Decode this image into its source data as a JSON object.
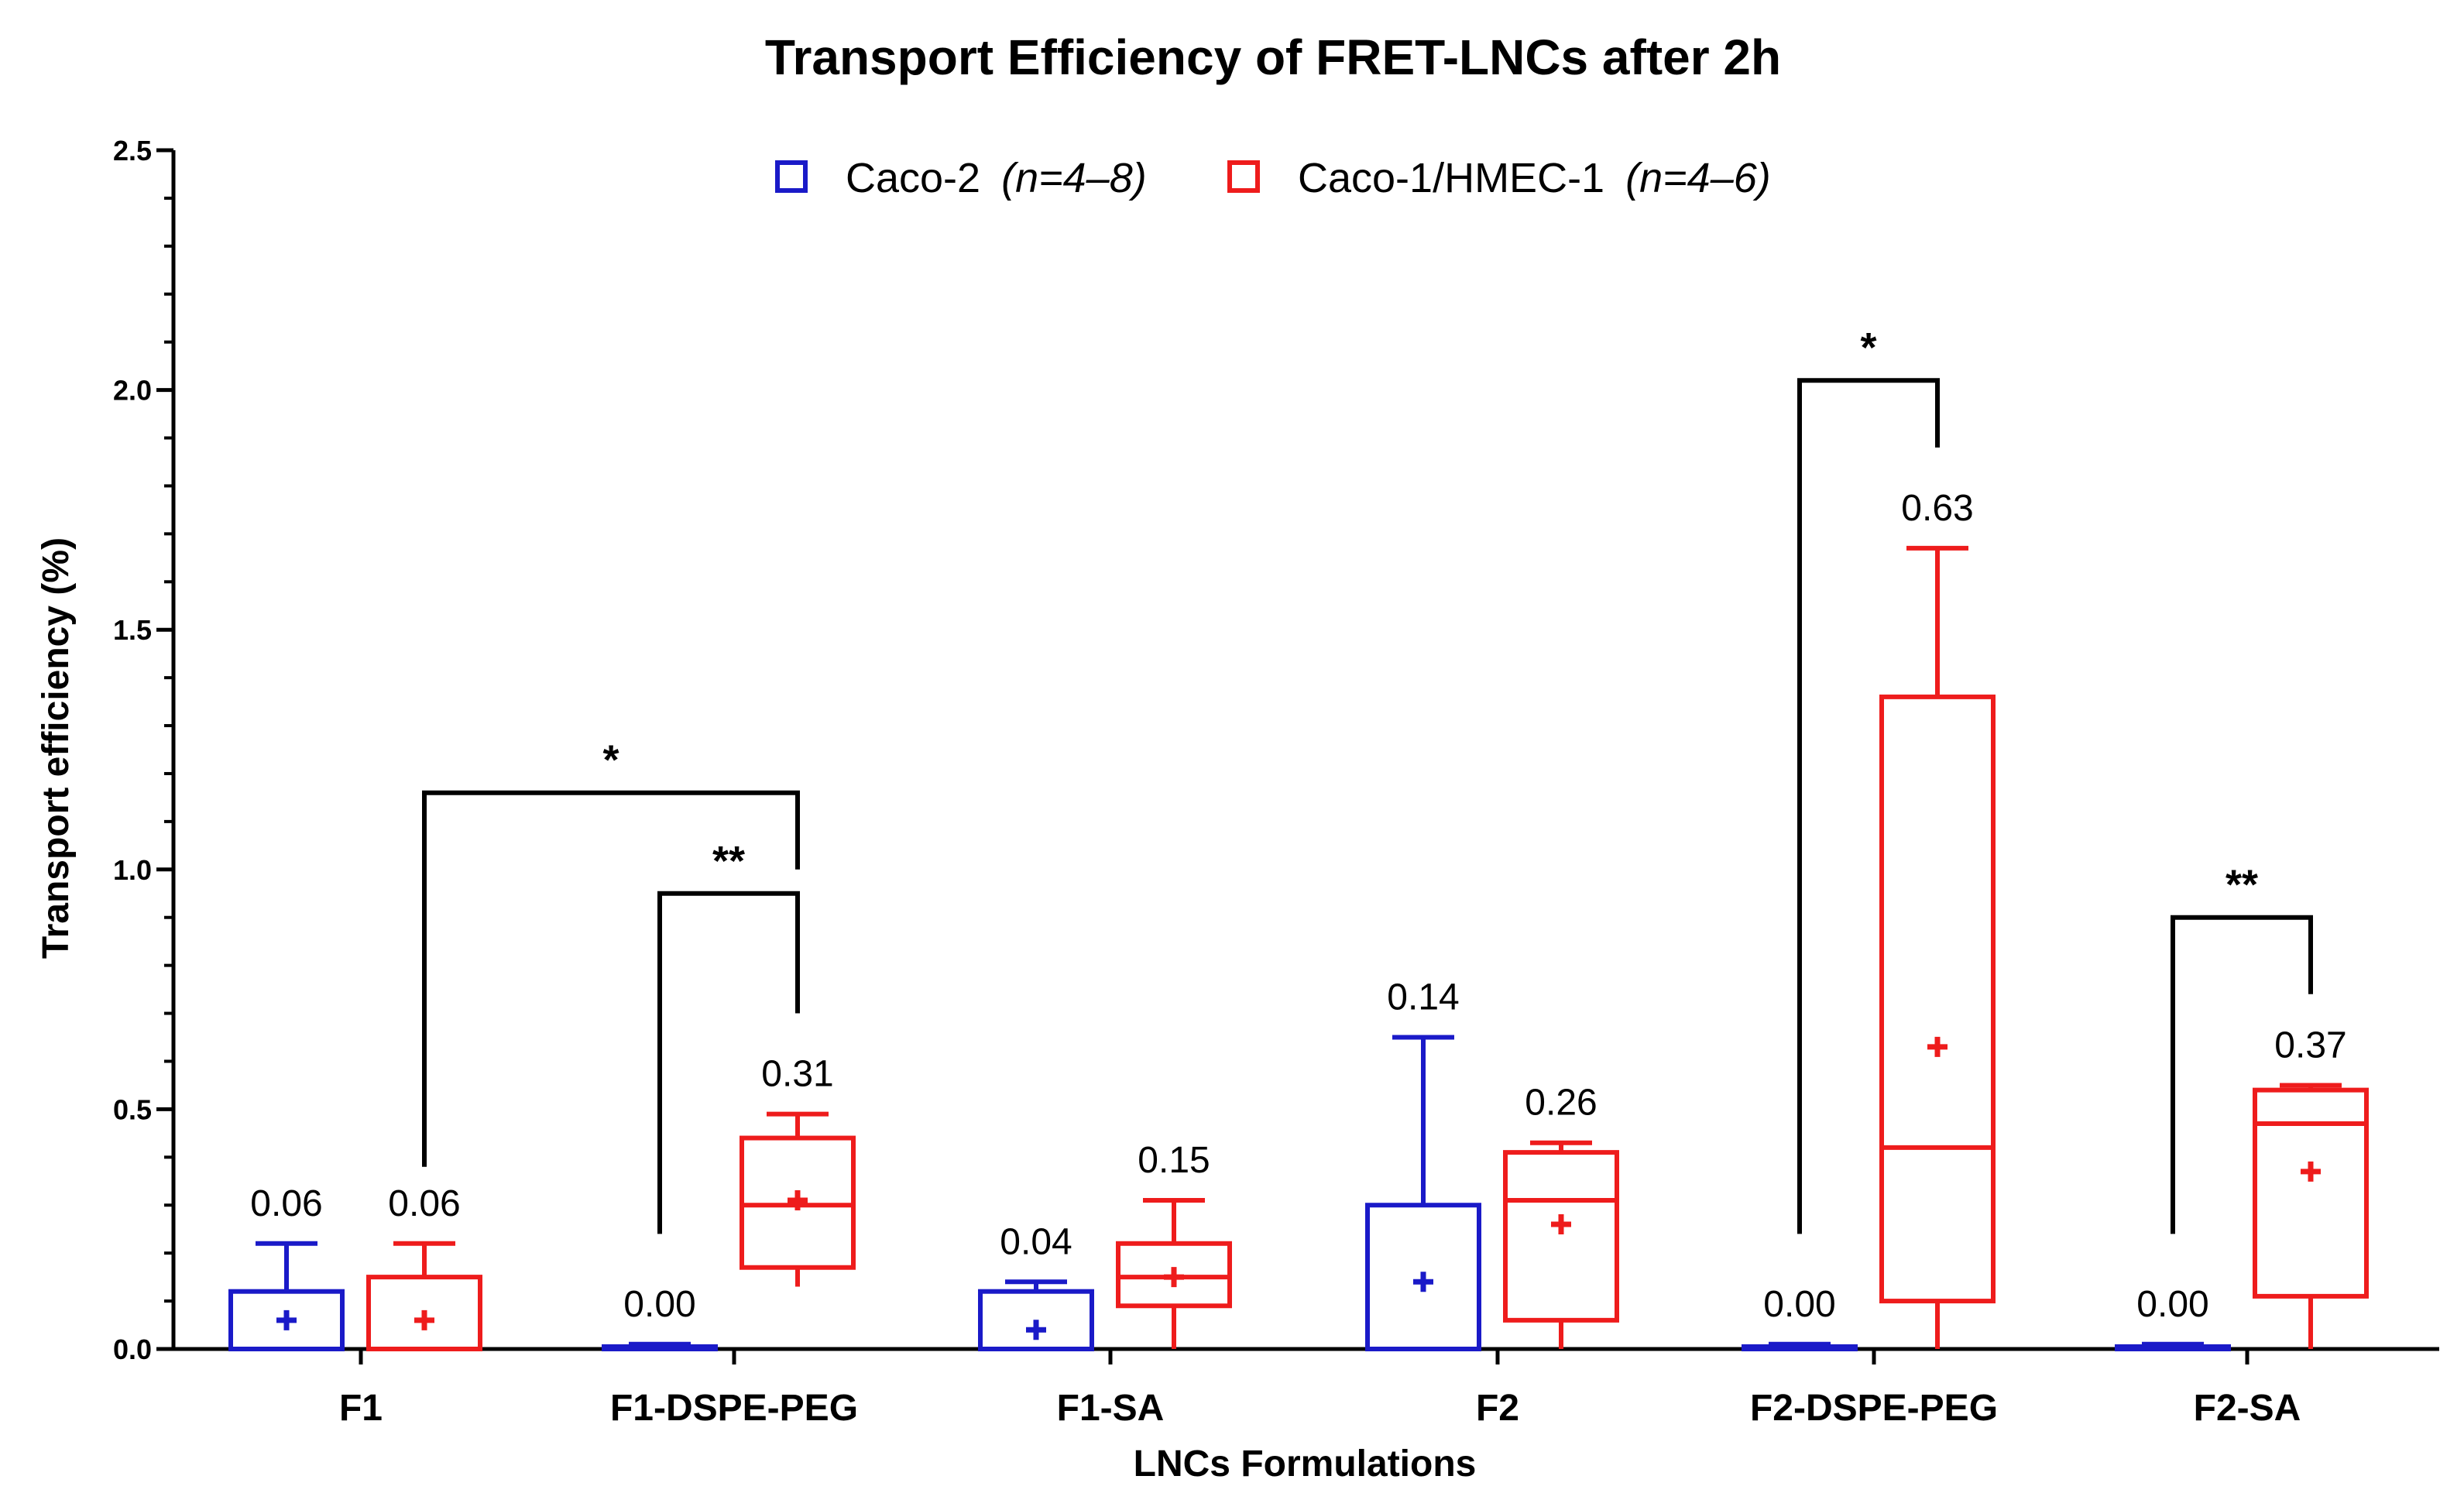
{
  "chart_data": {
    "type": "box",
    "title": "Transport Efficiency of FRET-LNCs after 2h",
    "xlabel": "LNCs Formulations",
    "ylabel": "Transport efficiency (%)",
    "ylim": [
      0,
      2.5
    ],
    "yticks": [
      "0.0",
      "0.5",
      "1.0",
      "1.5",
      "2.0",
      "2.5"
    ],
    "categories": [
      "F1",
      "F1-DSPE-PEG",
      "F1-SA",
      "F2",
      "F2-DSPE-PEG",
      "F2-SA"
    ],
    "legend_position": "top-center",
    "series": [
      {
        "name": "Caco-2",
        "n_label": "(n=4–8)",
        "color": "#1a1ac8",
        "boxes": [
          {
            "min": 0.0,
            "q1": 0.0,
            "median": 0.0,
            "q3": 0.12,
            "max": 0.22,
            "mean": 0.06,
            "label": "0.06"
          },
          {
            "min": 0.0,
            "q1": 0.0,
            "median": 0.0,
            "q3": 0.005,
            "max": 0.01,
            "mean": 0.0,
            "label": "0.00"
          },
          {
            "min": 0.0,
            "q1": 0.0,
            "median": 0.0,
            "q3": 0.12,
            "max": 0.14,
            "mean": 0.04,
            "label": "0.04"
          },
          {
            "min": 0.0,
            "q1": 0.0,
            "median": 0.0,
            "q3": 0.3,
            "max": 0.65,
            "mean": 0.14,
            "label": "0.14"
          },
          {
            "min": 0.0,
            "q1": 0.0,
            "median": 0.0,
            "q3": 0.005,
            "max": 0.01,
            "mean": 0.0,
            "label": "0.00"
          },
          {
            "min": 0.0,
            "q1": 0.0,
            "median": 0.0,
            "q3": 0.005,
            "max": 0.01,
            "mean": 0.0,
            "label": "0.00"
          }
        ]
      },
      {
        "name": "Caco-1/HMEC-1",
        "n_label": "(n=4–6)",
        "color": "#ee1c1c",
        "boxes": [
          {
            "min": 0.0,
            "q1": 0.0,
            "median": 0.0,
            "q3": 0.15,
            "max": 0.22,
            "mean": 0.06,
            "label": "0.06"
          },
          {
            "min": 0.13,
            "q1": 0.17,
            "median": 0.3,
            "q3": 0.44,
            "max": 0.49,
            "mean": 0.31,
            "label": "0.31"
          },
          {
            "min": 0.0,
            "q1": 0.09,
            "median": 0.15,
            "q3": 0.22,
            "max": 0.31,
            "mean": 0.15,
            "label": "0.15"
          },
          {
            "min": 0.0,
            "q1": 0.06,
            "median": 0.31,
            "q3": 0.41,
            "max": 0.43,
            "mean": 0.26,
            "label": "0.26"
          },
          {
            "min": 0.0,
            "q1": 0.1,
            "median": 0.42,
            "q3": 1.36,
            "max": 1.67,
            "mean": 0.63,
            "label": "0.63"
          },
          {
            "min": 0.0,
            "q1": 0.11,
            "median": 0.47,
            "q3": 0.54,
            "max": 0.55,
            "mean": 0.37,
            "label": "0.37"
          }
        ]
      }
    ],
    "significance": [
      {
        "from": {
          "cat": 1,
          "series": 0,
          "y": 0.24
        },
        "to": {
          "cat": 1,
          "series": 1,
          "y": 0.7
        },
        "bar_y": 0.95,
        "label": "**"
      },
      {
        "from": {
          "cat": 0,
          "series": 1,
          "y": 0.38
        },
        "to": {
          "cat": 1,
          "series": 1,
          "y": 1.0
        },
        "bar_y": 1.16,
        "label": "*"
      },
      {
        "from": {
          "cat": 4,
          "series": 0,
          "y": 0.24
        },
        "to": {
          "cat": 4,
          "series": 1,
          "y": 1.88
        },
        "bar_y": 2.02,
        "label": "*"
      },
      {
        "from": {
          "cat": 5,
          "series": 0,
          "y": 0.24
        },
        "to": {
          "cat": 5,
          "series": 1,
          "y": 0.74
        },
        "bar_y": 0.9,
        "label": "**"
      }
    ]
  }
}
